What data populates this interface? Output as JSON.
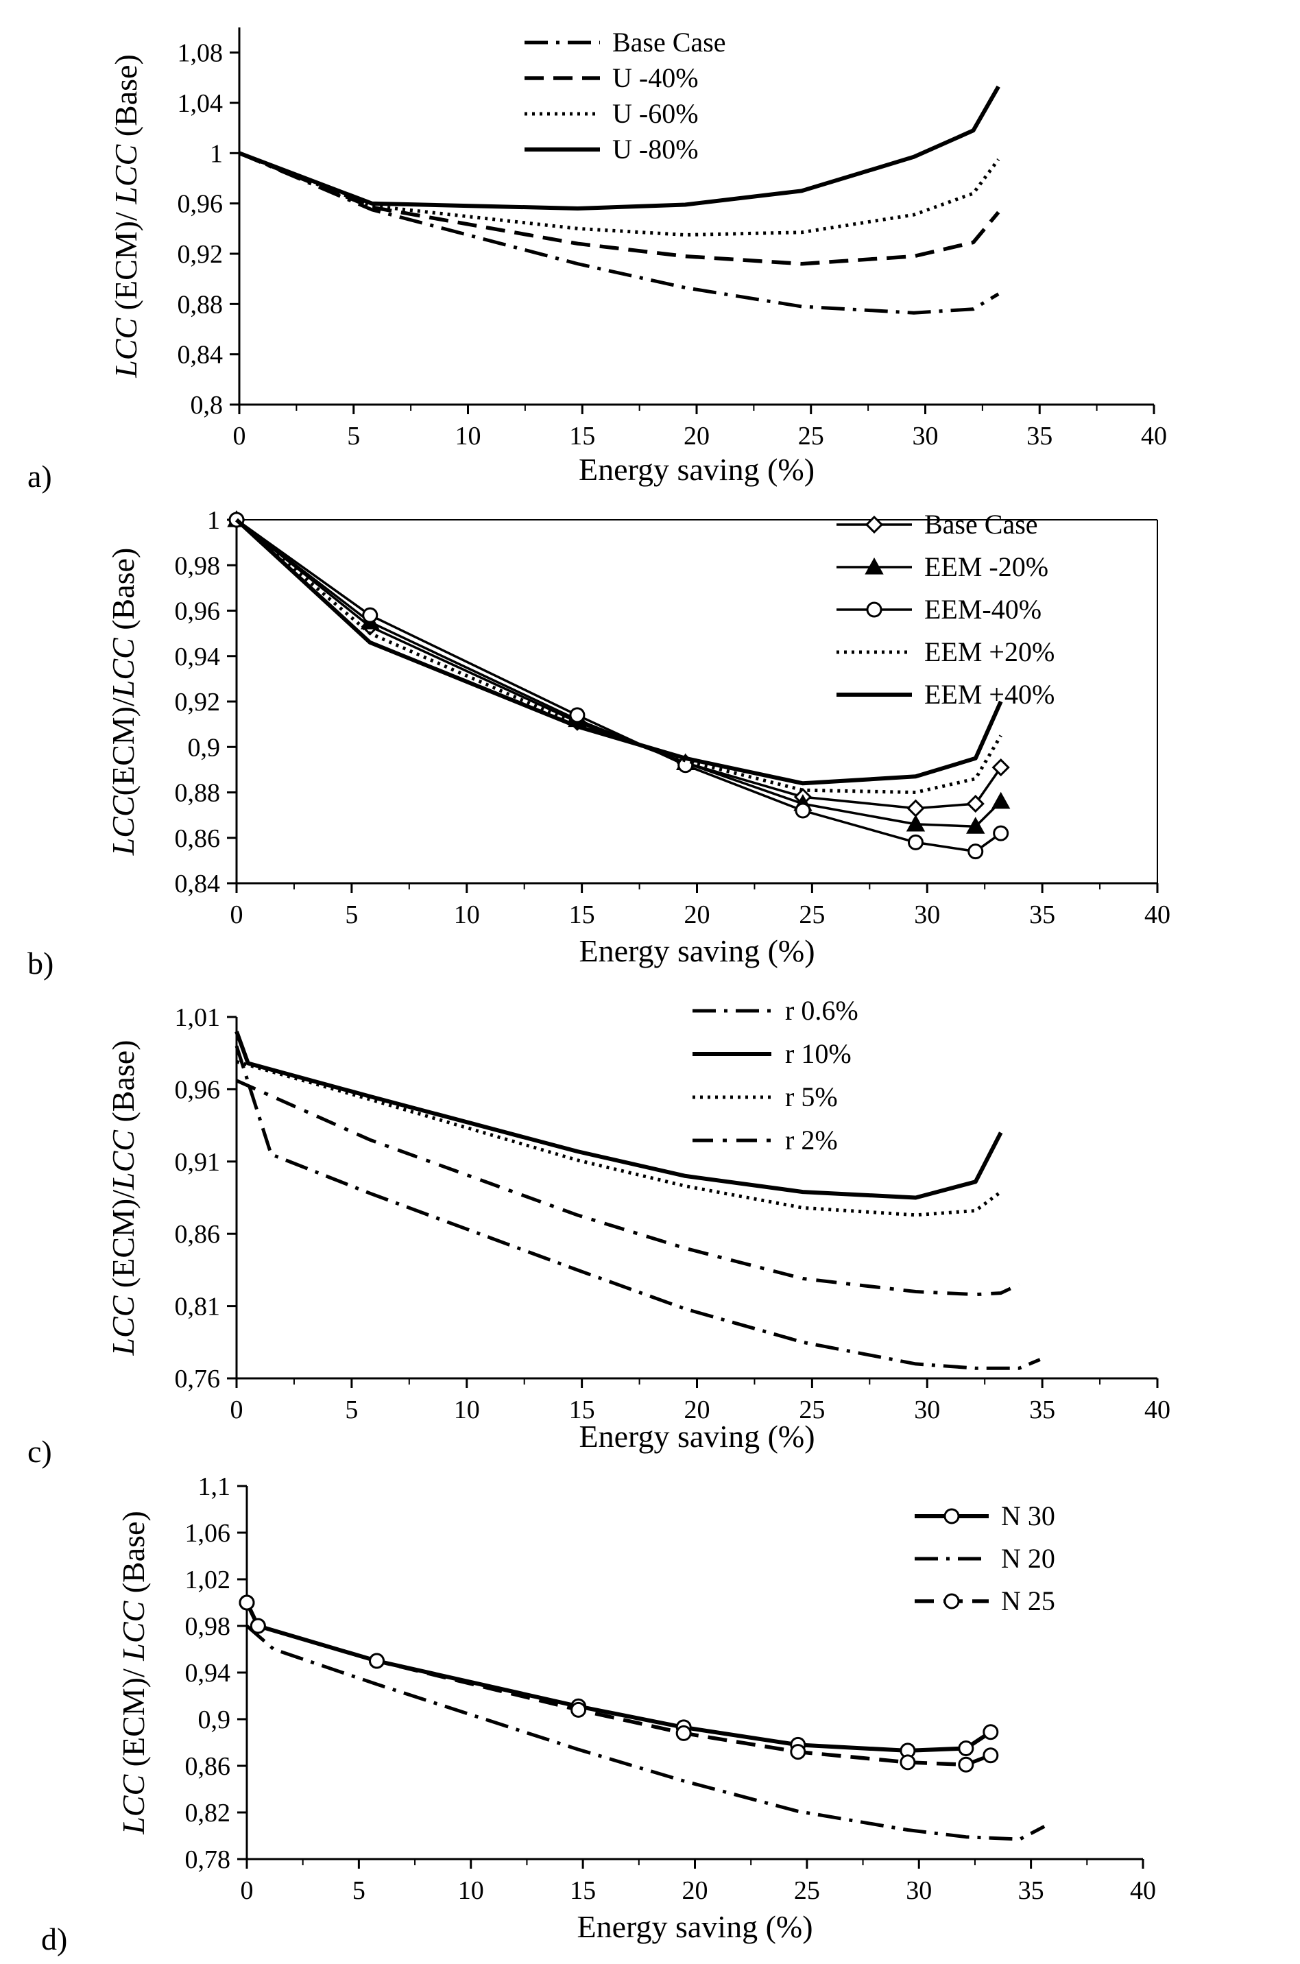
{
  "chart_data": [
    {
      "id": "a",
      "type": "line",
      "panel_label": "a)",
      "xlabel": "Energy saving (%)",
      "ylabel_italic_1": "LCC",
      "ylabel_mid": " (ECM)/ ",
      "ylabel_italic_2": "LCC",
      "ylabel_end": " (Base)",
      "xlim": [
        0,
        40
      ],
      "ylim": [
        0.8,
        1.1
      ],
      "xticks": [
        0,
        5,
        10,
        15,
        20,
        25,
        30,
        35,
        40
      ],
      "xtick_labels": [
        "0",
        "5",
        "10",
        "15",
        "20",
        "25",
        "30",
        "35",
        "40"
      ],
      "yticks": [
        0.8,
        0.84,
        0.88,
        0.92,
        0.96,
        1.0,
        1.04,
        1.08
      ],
      "ytick_labels": [
        "0,8",
        "0,84",
        "0,88",
        "0,92",
        "0,96",
        "1",
        "1,04",
        "1,08"
      ],
      "legend_position": "top-center",
      "series": [
        {
          "name": "Base Case",
          "style": "dashdot",
          "x": [
            0,
            5.8,
            14.8,
            19.5,
            24.6,
            29.5,
            32.1,
            33.2
          ],
          "y": [
            1.0,
            0.955,
            0.912,
            0.893,
            0.878,
            0.873,
            0.876,
            0.888
          ]
        },
        {
          "name": "U -40%",
          "style": "dashed",
          "x": [
            0,
            5.8,
            14.8,
            19.5,
            24.6,
            29.5,
            32.1,
            33.2
          ],
          "y": [
            1.0,
            0.957,
            0.928,
            0.918,
            0.912,
            0.918,
            0.929,
            0.953
          ]
        },
        {
          "name": "U -60%",
          "style": "dotted",
          "x": [
            0,
            5.8,
            14.8,
            19.5,
            24.6,
            29.5,
            32.1,
            33.2
          ],
          "y": [
            1.0,
            0.958,
            0.94,
            0.935,
            0.937,
            0.951,
            0.968,
            0.995
          ]
        },
        {
          "name": "U -80%",
          "style": "solid",
          "x": [
            0,
            5.8,
            14.8,
            19.5,
            24.6,
            29.5,
            32.1,
            33.2
          ],
          "y": [
            1.0,
            0.96,
            0.956,
            0.959,
            0.97,
            0.997,
            1.018,
            1.053
          ]
        }
      ]
    },
    {
      "id": "b",
      "type": "line",
      "panel_label": "b)",
      "xlabel": "Energy saving (%)",
      "ylabel_italic_1": "LCC",
      "ylabel_mid": "(ECM)/",
      "ylabel_italic_2": "LCC",
      "ylabel_end": " (Base)",
      "xlim": [
        0,
        40
      ],
      "ylim": [
        0.84,
        1.0
      ],
      "xticks": [
        0,
        5,
        10,
        15,
        20,
        25,
        30,
        35,
        40
      ],
      "xtick_labels": [
        "0",
        "5",
        "10",
        "15",
        "20",
        "25",
        "30",
        "35",
        "40"
      ],
      "yticks": [
        0.84,
        0.86,
        0.88,
        0.9,
        0.92,
        0.94,
        0.96,
        0.98,
        1.0
      ],
      "ytick_labels": [
        "0,84",
        "0,86",
        "0,88",
        "0,9",
        "0,92",
        "0,94",
        "0,96",
        "0,98",
        "1"
      ],
      "legend_position": "top-right",
      "series": [
        {
          "name": "Base Case",
          "style": "solid-thin",
          "marker": "diamond",
          "x": [
            0,
            5.8,
            14.8,
            19.5,
            24.6,
            29.5,
            32.1,
            33.2
          ],
          "y": [
            1.0,
            0.953,
            0.911,
            0.893,
            0.878,
            0.873,
            0.875,
            0.891
          ]
        },
        {
          "name": "EEM -20%",
          "style": "solid-thin",
          "marker": "triangle",
          "x": [
            0,
            5.8,
            14.8,
            19.5,
            24.6,
            29.5,
            32.1,
            33.2
          ],
          "y": [
            1.0,
            0.955,
            0.912,
            0.893,
            0.875,
            0.866,
            0.865,
            0.876
          ]
        },
        {
          "name": "EEM-40%",
          "style": "solid-thin",
          "marker": "circle",
          "x": [
            0,
            5.8,
            14.8,
            19.5,
            24.6,
            29.5,
            32.1,
            33.2
          ],
          "y": [
            1.0,
            0.958,
            0.914,
            0.892,
            0.872,
            0.858,
            0.854,
            0.862
          ]
        },
        {
          "name": "EEM +20%",
          "style": "dotted",
          "x": [
            0,
            5.8,
            14.8,
            19.5,
            24.6,
            29.5,
            32.1,
            33.2
          ],
          "y": [
            1.0,
            0.95,
            0.91,
            0.894,
            0.881,
            0.88,
            0.886,
            0.905
          ]
        },
        {
          "name": "EEM +40%",
          "style": "solid",
          "x": [
            0,
            5.8,
            14.8,
            19.5,
            24.6,
            29.5,
            32.1,
            33.2
          ],
          "y": [
            1.0,
            0.946,
            0.909,
            0.895,
            0.884,
            0.887,
            0.895,
            0.92
          ]
        }
      ]
    },
    {
      "id": "c",
      "type": "line",
      "panel_label": "c)",
      "xlabel": "Energy saving (%)",
      "ylabel_italic_1": "LCC",
      "ylabel_mid": " (ECM)/",
      "ylabel_italic_2": "LCC",
      "ylabel_end": " (Base)",
      "xlim": [
        0,
        40
      ],
      "ylim": [
        0.76,
        1.01
      ],
      "xticks": [
        0,
        5,
        10,
        15,
        20,
        25,
        30,
        35,
        40
      ],
      "xtick_labels": [
        "0",
        "5",
        "10",
        "15",
        "20",
        "25",
        "30",
        "35",
        "40"
      ],
      "yticks": [
        0.76,
        0.81,
        0.86,
        0.91,
        0.96,
        1.01
      ],
      "ytick_labels": [
        "0,76",
        "0,81",
        "0,86",
        "0,91",
        "0,96",
        "1,01"
      ],
      "legend_position": "top-right",
      "series": [
        {
          "name": "r 0.6%",
          "style": "dashdot",
          "x": [
            0,
            0.6,
            1.5,
            5.8,
            14.8,
            19.5,
            24.6,
            29.5,
            32.1,
            34.0,
            34.9
          ],
          "y": [
            0.99,
            0.96,
            0.915,
            0.888,
            0.835,
            0.808,
            0.785,
            0.77,
            0.767,
            0.767,
            0.773
          ]
        },
        {
          "name": "r 10%",
          "style": "solid",
          "x": [
            0,
            0.5,
            5.8,
            14.8,
            19.5,
            24.6,
            29.5,
            32.1,
            33.2
          ],
          "y": [
            1.0,
            0.978,
            0.955,
            0.917,
            0.9,
            0.889,
            0.885,
            0.896,
            0.93
          ]
        },
        {
          "name": "r 5%",
          "style": "dotted",
          "x": [
            0,
            5.8,
            14.8,
            19.5,
            24.6,
            29.5,
            32.1,
            33.2
          ],
          "y": [
            0.979,
            0.953,
            0.911,
            0.893,
            0.878,
            0.873,
            0.876,
            0.889
          ]
        },
        {
          "name": "r 2%",
          "style": "dashdot-long",
          "x": [
            0,
            5.8,
            14.8,
            19.5,
            24.6,
            29.5,
            32.1,
            33.2,
            34.0
          ],
          "y": [
            0.966,
            0.925,
            0.873,
            0.85,
            0.829,
            0.82,
            0.818,
            0.819,
            0.825
          ]
        }
      ]
    },
    {
      "id": "d",
      "type": "line",
      "panel_label": "d)",
      "xlabel": "Energy saving (%)",
      "ylabel_italic_1": "LCC",
      "ylabel_mid": " (ECM)/ ",
      "ylabel_italic_2": "LCC",
      "ylabel_end": " (Base)",
      "xlim": [
        0,
        40
      ],
      "ylim": [
        0.78,
        1.1
      ],
      "xticks": [
        0,
        5,
        10,
        15,
        20,
        25,
        30,
        35,
        40
      ],
      "xtick_labels": [
        "0",
        "5",
        "10",
        "15",
        "20",
        "25",
        "30",
        "35",
        "40"
      ],
      "yticks": [
        0.78,
        0.82,
        0.86,
        0.9,
        0.94,
        0.98,
        1.02,
        1.06,
        1.1
      ],
      "ytick_labels": [
        "0,78",
        "0,82",
        "0,86",
        "0,9",
        "0,94",
        "0,98",
        "1,02",
        "1,06",
        "1,1"
      ],
      "legend_position": "top-right",
      "series": [
        {
          "name": "N 30",
          "style": "solid",
          "marker": "circle",
          "x": [
            0,
            0.5,
            5.8,
            14.8,
            19.5,
            24.6,
            29.5,
            32.1,
            33.2
          ],
          "y": [
            1.0,
            0.98,
            0.95,
            0.911,
            0.893,
            0.878,
            0.873,
            0.875,
            0.889
          ]
        },
        {
          "name": "N 20",
          "style": "dashdot",
          "x": [
            0,
            1.2,
            5.8,
            14.8,
            19.5,
            24.6,
            29.5,
            32.1,
            34.5,
            35.6
          ],
          "y": [
            0.98,
            0.96,
            0.93,
            0.874,
            0.847,
            0.821,
            0.805,
            0.799,
            0.797,
            0.808
          ]
        },
        {
          "name": "N 25",
          "style": "dashed",
          "marker": "circle",
          "x": [
            0,
            0.5,
            5.8,
            14.8,
            19.5,
            24.6,
            29.5,
            32.1,
            33.2
          ],
          "y": [
            1.0,
            0.98,
            0.95,
            0.908,
            0.888,
            0.872,
            0.863,
            0.861,
            0.869
          ]
        }
      ]
    }
  ]
}
